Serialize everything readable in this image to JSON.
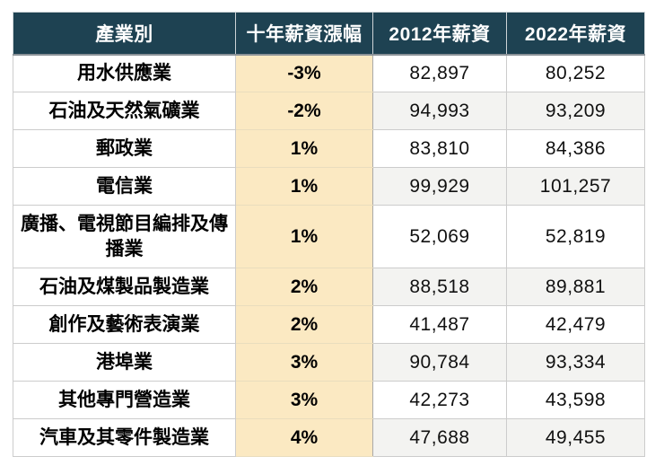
{
  "table": {
    "columns": [
      {
        "label": "產業別"
      },
      {
        "label": "十年薪資漲幅"
      },
      {
        "label": "2012年薪資"
      },
      {
        "label": "2022年薪資"
      }
    ],
    "rows": [
      {
        "industry": "用水供應業",
        "change": "-3%",
        "salary_2012": "82,897",
        "salary_2022": "80,252"
      },
      {
        "industry": "石油及天然氣礦業",
        "change": "-2%",
        "salary_2012": "94,993",
        "salary_2022": "93,209"
      },
      {
        "industry": "郵政業",
        "change": "1%",
        "salary_2012": "83,810",
        "salary_2022": "84,386"
      },
      {
        "industry": "電信業",
        "change": "1%",
        "salary_2012": "99,929",
        "salary_2022": "101,257"
      },
      {
        "industry": "廣播、電視節目編排及傳播業",
        "change": "1%",
        "salary_2012": "52,069",
        "salary_2022": "52,819"
      },
      {
        "industry": "石油及煤製品製造業",
        "change": "2%",
        "salary_2012": "88,518",
        "salary_2022": "89,881"
      },
      {
        "industry": "創作及藝術表演業",
        "change": "2%",
        "salary_2012": "41,487",
        "salary_2022": "42,479"
      },
      {
        "industry": "港埠業",
        "change": "3%",
        "salary_2012": "90,784",
        "salary_2022": "93,334"
      },
      {
        "industry": "其他專門營造業",
        "change": "3%",
        "salary_2012": "42,273",
        "salary_2022": "43,598"
      },
      {
        "industry": "汽車及其零件製造業",
        "change": "4%",
        "salary_2012": "47,688",
        "salary_2022": "49,455"
      }
    ]
  },
  "colors": {
    "header_bg": "#1e4252",
    "header_text": "#ffffff",
    "highlight_bg": "#fbe9c2",
    "stripe_bg": "#f3f3f1",
    "row_bg": "#ffffff",
    "grid_line": "#cccccc",
    "grid_dark": "#a9a9a9",
    "text": "#000000"
  },
  "chart_data": {
    "type": "table",
    "columns": [
      "產業別",
      "十年薪資漲幅",
      "2012年薪資",
      "2022年薪資"
    ],
    "rows": [
      [
        "用水供應業",
        "-3%",
        82897,
        80252
      ],
      [
        "石油及天然氣礦業",
        "-2%",
        94993,
        93209
      ],
      [
        "郵政業",
        "1%",
        83810,
        84386
      ],
      [
        "電信業",
        "1%",
        99929,
        101257
      ],
      [
        "廣播、電視節目編排及傳播業",
        "1%",
        52069,
        52819
      ],
      [
        "石油及煤製品製造業",
        "2%",
        88518,
        89881
      ],
      [
        "創作及藝術表演業",
        "2%",
        41487,
        42479
      ],
      [
        "港埠業",
        "3%",
        90784,
        93334
      ],
      [
        "其他專門營造業",
        "3%",
        42273,
        43598
      ],
      [
        "汽車及其零件製造業",
        "4%",
        47688,
        49455
      ]
    ],
    "title": "",
    "notes": "highlight column = ten-year salary change; stripe on even rows of salary columns"
  }
}
